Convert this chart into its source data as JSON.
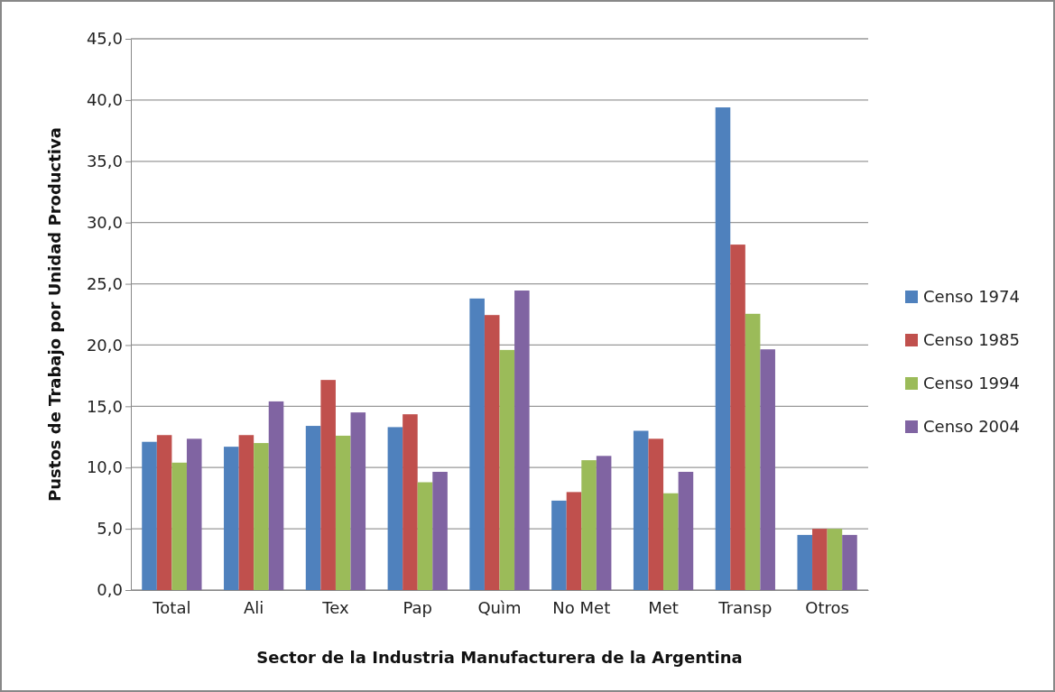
{
  "chart_data": {
    "type": "bar",
    "xlabel": "Sector de  la Industria Manufacturera de la Argentina",
    "ylabel": "Pustos de Trabajo por Unidad Productiva",
    "categories": [
      "Total",
      "Ali",
      "Tex",
      "Pap",
      "Quìm",
      "No Met",
      "Met",
      "Transp",
      "Otros"
    ],
    "series": [
      {
        "name": "Censo 1974",
        "color": "#4f81bd",
        "values": [
          12.1,
          11.7,
          13.4,
          13.3,
          23.8,
          7.3,
          13.0,
          39.4,
          4.5
        ]
      },
      {
        "name": "Censo 1985",
        "color": "#c0504d",
        "values": [
          12.65,
          12.65,
          17.15,
          14.35,
          22.45,
          8.0,
          12.35,
          28.2,
          5.0
        ]
      },
      {
        "name": "Censo 1994",
        "color": "#9bbb59",
        "values": [
          10.4,
          12.0,
          12.6,
          8.8,
          19.6,
          10.6,
          7.9,
          22.55,
          5.0
        ]
      },
      {
        "name": "Censo 2004",
        "color": "#8064a2",
        "values": [
          12.35,
          15.4,
          14.5,
          9.65,
          24.45,
          10.95,
          9.65,
          19.65,
          4.5
        ]
      }
    ],
    "ylim": [
      0,
      45
    ],
    "yticks": [
      {
        "value": 0,
        "label": "0,0"
      },
      {
        "value": 5,
        "label": "5,0"
      },
      {
        "value": 10,
        "label": "10,0"
      },
      {
        "value": 15,
        "label": "15,0"
      },
      {
        "value": 20,
        "label": "20,0"
      },
      {
        "value": 25,
        "label": "25,0"
      },
      {
        "value": 30,
        "label": "30,0"
      },
      {
        "value": 35,
        "label": "35,0"
      },
      {
        "value": 40,
        "label": "40,0"
      },
      {
        "value": 45,
        "label": "45,0"
      }
    ],
    "grid": "y",
    "legend": "right"
  }
}
